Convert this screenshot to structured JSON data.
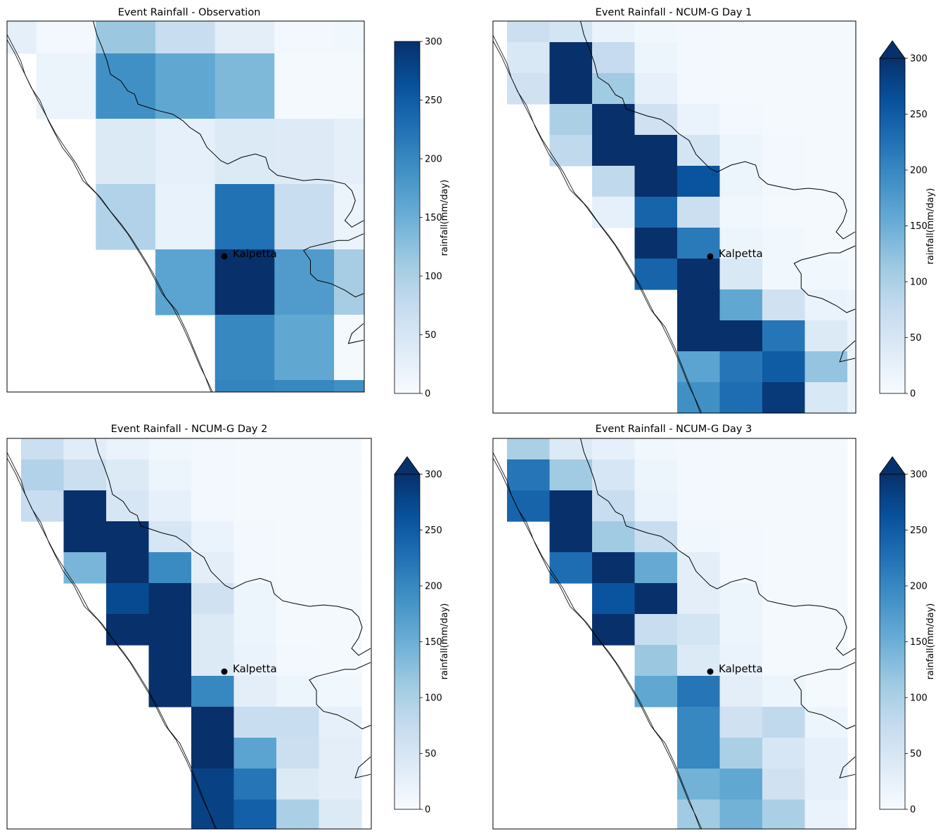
{
  "chart_data": [
    {
      "type": "heatmap",
      "title": "Event Rainfall - Observation",
      "colorbar": {
        "label": "rainfall(mm/day)",
        "ticks": [
          0,
          50,
          100,
          150,
          200,
          250,
          300
        ],
        "range": [
          0,
          300
        ],
        "extend": "none"
      },
      "marker": {
        "label": "Kalpetta"
      },
      "grid": {
        "rows": [
          [
            28,
            8,
            115,
            70,
            30,
            8,
            10
          ],
          [
            null,
            18,
            190,
            160,
            135,
            5,
            5
          ],
          [
            null,
            null,
            40,
            25,
            40,
            38,
            28
          ],
          [
            null,
            null,
            95,
            22,
            225,
            70,
            18
          ],
          [
            null,
            null,
            null,
            165,
            300,
            175,
            105
          ],
          [
            null,
            null,
            null,
            null,
            200,
            160,
            5
          ],
          [
            null,
            null,
            null,
            null,
            205,
            200,
            190
          ]
        ]
      }
    },
    {
      "type": "heatmap",
      "title": "Event Rainfall - NCUM-G Day 1",
      "colorbar": {
        "label": "rainfall(mm/day)",
        "ticks": [
          0,
          50,
          100,
          150,
          200,
          250,
          300
        ],
        "range": [
          0,
          300
        ],
        "extend": "max"
      },
      "marker": {
        "label": "Kalpetta"
      },
      "grid": {
        "rows": [
          [
            65,
            55,
            20,
            10,
            8,
            5,
            5,
            5,
            5
          ],
          [
            45,
            300,
            75,
            15,
            8,
            5,
            5,
            5,
            5
          ],
          [
            60,
            300,
            110,
            25,
            8,
            5,
            5,
            5,
            5
          ],
          [
            null,
            100,
            300,
            60,
            20,
            8,
            5,
            5,
            5
          ],
          [
            null,
            80,
            300,
            300,
            55,
            15,
            8,
            5,
            5
          ],
          [
            null,
            null,
            80,
            300,
            260,
            15,
            8,
            5,
            5
          ],
          [
            null,
            null,
            25,
            240,
            65,
            10,
            5,
            5,
            5
          ],
          [
            null,
            null,
            null,
            300,
            215,
            15,
            10,
            5,
            5
          ],
          [
            null,
            null,
            null,
            240,
            300,
            45,
            10,
            10,
            5
          ],
          [
            null,
            null,
            null,
            null,
            300,
            160,
            60,
            20,
            15
          ],
          [
            null,
            null,
            null,
            null,
            300,
            300,
            220,
            40,
            15
          ],
          [
            null,
            null,
            null,
            null,
            165,
            220,
            250,
            120,
            15
          ],
          [
            null,
            null,
            null,
            null,
            190,
            230,
            290,
            45,
            15
          ],
          [
            null,
            null,
            null,
            null,
            null,
            260,
            300,
            300,
            15
          ]
        ]
      }
    },
    {
      "type": "heatmap",
      "title": "Event Rainfall - NCUM-G Day 2",
      "colorbar": {
        "label": "rainfall(mm/day)",
        "ticks": [
          0,
          50,
          100,
          150,
          200,
          250,
          300
        ],
        "range": [
          0,
          300
        ],
        "extend": "max"
      },
      "marker": {
        "label": "Kalpetta"
      },
      "grid": {
        "rows": [
          [
            65,
            35,
            20,
            10,
            8,
            5,
            5,
            5
          ],
          [
            95,
            65,
            40,
            15,
            8,
            5,
            5,
            5
          ],
          [
            70,
            300,
            50,
            25,
            8,
            5,
            5,
            5
          ],
          [
            null,
            300,
            300,
            50,
            20,
            8,
            5,
            5
          ],
          [
            null,
            140,
            300,
            195,
            30,
            8,
            5,
            5
          ],
          [
            null,
            null,
            270,
            300,
            60,
            15,
            5,
            5
          ],
          [
            null,
            null,
            300,
            300,
            40,
            15,
            5,
            5
          ],
          [
            null,
            null,
            null,
            300,
            40,
            20,
            8,
            5
          ],
          [
            null,
            null,
            null,
            300,
            200,
            30,
            15,
            10
          ],
          [
            null,
            null,
            null,
            null,
            300,
            70,
            70,
            25
          ],
          [
            null,
            null,
            null,
            null,
            300,
            165,
            65,
            30
          ],
          [
            null,
            null,
            null,
            null,
            280,
            220,
            40,
            30
          ],
          [
            null,
            null,
            null,
            null,
            280,
            245,
            100,
            40
          ],
          [
            null,
            null,
            null,
            null,
            null,
            300,
            300,
            40
          ]
        ]
      }
    },
    {
      "type": "heatmap",
      "title": "Event Rainfall - NCUM-G Day 3",
      "colorbar": {
        "label": "rainfall(mm/day)",
        "ticks": [
          0,
          50,
          100,
          150,
          200,
          250,
          300
        ],
        "range": [
          0,
          300
        ],
        "extend": "max"
      },
      "marker": {
        "label": "Kalpetta"
      },
      "grid": {
        "rows": [
          [
            100,
            40,
            25,
            10,
            8,
            5,
            5,
            5
          ],
          [
            220,
            110,
            50,
            15,
            8,
            5,
            5,
            5
          ],
          [
            240,
            300,
            70,
            20,
            8,
            5,
            5,
            5
          ],
          [
            null,
            300,
            110,
            70,
            10,
            8,
            5,
            5
          ],
          [
            null,
            230,
            300,
            155,
            30,
            8,
            5,
            5
          ],
          [
            null,
            null,
            260,
            300,
            30,
            15,
            5,
            5
          ],
          [
            null,
            null,
            300,
            70,
            55,
            15,
            5,
            5
          ],
          [
            null,
            null,
            null,
            115,
            40,
            20,
            5,
            5
          ],
          [
            null,
            null,
            null,
            160,
            220,
            30,
            15,
            5
          ],
          [
            null,
            null,
            null,
            null,
            200,
            60,
            80,
            15
          ],
          [
            null,
            null,
            null,
            null,
            200,
            100,
            50,
            25
          ],
          [
            null,
            null,
            null,
            null,
            145,
            160,
            60,
            25
          ],
          [
            null,
            null,
            null,
            null,
            110,
            145,
            100,
            20
          ],
          [
            null,
            null,
            null,
            null,
            null,
            145,
            120,
            30
          ]
        ]
      }
    }
  ]
}
